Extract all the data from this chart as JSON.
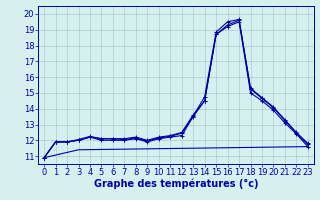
{
  "background_color": "#d6f0f0",
  "line_color": "#0000aa",
  "grid_color": "#aacccc",
  "xlabel": "Graphe des températures (°c)",
  "xlabel_fontsize": 7,
  "tick_fontsize": 6,
  "xlim": [
    -0.5,
    23.5
  ],
  "ylim": [
    10.5,
    20.5
  ],
  "yticks": [
    11,
    12,
    13,
    14,
    15,
    16,
    17,
    18,
    19,
    20
  ],
  "xticks": [
    0,
    1,
    2,
    3,
    4,
    5,
    6,
    7,
    8,
    9,
    10,
    11,
    12,
    13,
    14,
    15,
    16,
    17,
    18,
    19,
    20,
    21,
    22,
    23
  ],
  "series": [
    {
      "x": [
        0,
        1,
        2,
        3,
        4,
        5,
        6,
        7,
        8,
        9,
        10,
        11,
        12,
        13,
        14,
        15,
        16,
        17,
        18,
        19,
        20,
        21,
        22,
        23
      ],
      "y": [
        10.9,
        11.9,
        11.9,
        12.0,
        12.2,
        12.0,
        12.0,
        12.0,
        12.1,
        11.9,
        12.1,
        12.2,
        12.3,
        13.5,
        14.5,
        18.7,
        19.3,
        19.6,
        15.3,
        14.7,
        14.1,
        13.3,
        12.5,
        11.8
      ],
      "markers": true
    },
    {
      "x": [
        0,
        1,
        2,
        3,
        4,
        5,
        6,
        7,
        8,
        9,
        10,
        11,
        12,
        13,
        14,
        15,
        16,
        17,
        18,
        19,
        20,
        21,
        22,
        23
      ],
      "y": [
        10.9,
        11.9,
        11.9,
        12.05,
        12.25,
        12.1,
        12.1,
        12.05,
        12.15,
        11.95,
        12.15,
        12.25,
        12.45,
        13.55,
        14.75,
        18.85,
        19.5,
        19.65,
        15.25,
        14.65,
        14.05,
        13.25,
        12.45,
        11.75
      ],
      "markers": true
    },
    {
      "x": [
        0,
        3,
        23
      ],
      "y": [
        10.9,
        11.4,
        11.6
      ],
      "markers": false
    },
    {
      "x": [
        0,
        1,
        2,
        3,
        4,
        5,
        6,
        7,
        8,
        9,
        10,
        11,
        12,
        13,
        14,
        15,
        16,
        17,
        18,
        19,
        20,
        21,
        22,
        23
      ],
      "y": [
        10.9,
        11.9,
        11.9,
        12.0,
        12.2,
        12.1,
        12.1,
        12.1,
        12.2,
        12.0,
        12.2,
        12.3,
        12.5,
        13.6,
        14.5,
        18.7,
        19.2,
        19.5,
        15.0,
        14.5,
        13.9,
        13.1,
        12.4,
        11.6
      ],
      "markers": true
    }
  ]
}
